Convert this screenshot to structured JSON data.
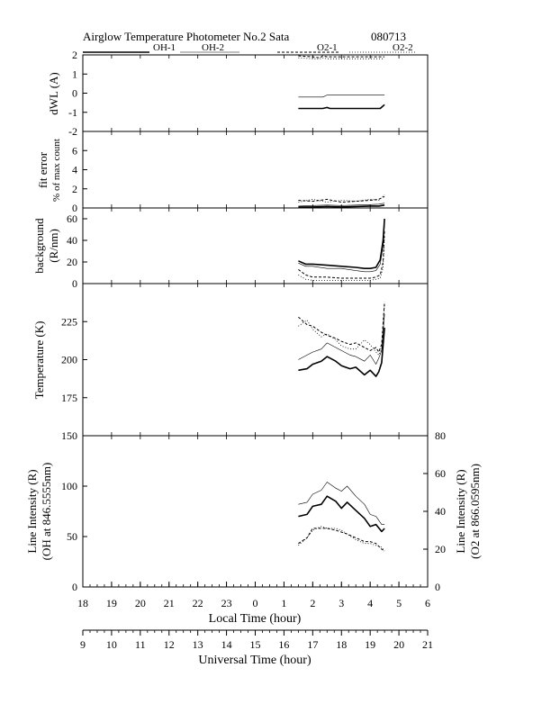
{
  "header": {
    "title": "Airglow Temperature Photometer No.2 Sata",
    "date_code": "080713"
  },
  "legend": [
    {
      "label": "OH-1",
      "color": "#000000",
      "dash": "solid"
    },
    {
      "label": "OH-2",
      "color": "#000000",
      "dash": "thin"
    },
    {
      "label": "O2-1",
      "color": "#000000",
      "dash": "dashed"
    },
    {
      "label": "O2-2",
      "color": "#000000",
      "dash": "dotted"
    }
  ],
  "x_axes": {
    "local": {
      "label": "Local Time (hour)",
      "ticks": [
        "18",
        "19",
        "20",
        "21",
        "22",
        "23",
        "0",
        "1",
        "2",
        "3",
        "4",
        "5",
        "6"
      ]
    },
    "universal": {
      "label": "Universal Time (hour)",
      "ticks": [
        "9",
        "10",
        "11",
        "12",
        "13",
        "14",
        "15",
        "16",
        "17",
        "18",
        "19",
        "20",
        "21"
      ]
    }
  },
  "chart_data": [
    {
      "type": "line",
      "id": "dwl",
      "ylabel": "dWL (A)",
      "ylim": [
        -2,
        2
      ],
      "yticks": [
        -2,
        -1,
        0,
        1,
        2
      ],
      "x": [
        1.5,
        2.0,
        2.25,
        2.35,
        2.5,
        2.6,
        3.0,
        3.5,
        4.0,
        4.35,
        4.5
      ],
      "series": [
        {
          "name": "OH-1",
          "values": [
            -0.8,
            -0.8,
            -0.8,
            -0.8,
            -0.75,
            -0.8,
            -0.8,
            -0.8,
            -0.8,
            -0.8,
            -0.6
          ]
        },
        {
          "name": "OH-2",
          "values": [
            -0.2,
            -0.2,
            -0.2,
            -0.2,
            -0.1,
            -0.1,
            -0.1,
            -0.1,
            -0.1,
            -0.1,
            -0.1
          ]
        },
        {
          "name": "O2-1",
          "values": [
            1.95,
            1.9,
            1.85,
            1.95,
            1.9,
            1.9,
            1.9,
            1.9,
            1.9,
            1.9,
            1.9
          ]
        },
        {
          "name": "O2-2",
          "values": [
            1.85,
            1.8,
            1.8,
            1.85,
            1.8,
            1.8,
            1.8,
            1.8,
            1.8,
            1.8,
            1.8
          ]
        }
      ]
    },
    {
      "type": "line",
      "id": "fiterror",
      "ylabel": [
        "fit error",
        "% of max count"
      ],
      "ylim": [
        0,
        8
      ],
      "yticks": [
        0,
        2,
        4,
        6
      ],
      "x": [
        1.5,
        2.0,
        2.5,
        3.0,
        3.5,
        4.0,
        4.3,
        4.5
      ],
      "series": [
        {
          "name": "OH-1",
          "values": [
            0.1,
            0.1,
            0.15,
            0.1,
            0.15,
            0.2,
            0.2,
            0.3
          ]
        },
        {
          "name": "OH-2",
          "values": [
            0.2,
            0.25,
            0.3,
            0.25,
            0.3,
            0.35,
            0.4,
            0.5
          ]
        },
        {
          "name": "O2-1",
          "values": [
            0.8,
            0.7,
            0.9,
            0.6,
            0.7,
            0.8,
            0.9,
            1.2
          ]
        },
        {
          "name": "O2-2",
          "values": [
            0.6,
            0.9,
            0.6,
            0.8,
            0.7,
            0.9,
            0.8,
            1.4
          ]
        }
      ]
    },
    {
      "type": "line",
      "id": "background",
      "ylabel": [
        "background",
        "(R/nm)"
      ],
      "ylim": [
        0,
        70
      ],
      "yticks": [
        0,
        20,
        40,
        60
      ],
      "x": [
        1.5,
        1.75,
        2.0,
        2.5,
        3.0,
        3.5,
        3.8,
        4.0,
        4.2,
        4.35,
        4.45,
        4.5
      ],
      "series": [
        {
          "name": "OH-1",
          "values": [
            21,
            18,
            18,
            17,
            16,
            15,
            14,
            14,
            15,
            22,
            40,
            60
          ]
        },
        {
          "name": "OH-2",
          "values": [
            19,
            16,
            16,
            14,
            14,
            12,
            11,
            11,
            12,
            18,
            35,
            55
          ]
        },
        {
          "name": "O2-1",
          "values": [
            13,
            8,
            6,
            6,
            5,
            5,
            5,
            5,
            6,
            8,
            20,
            50
          ]
        },
        {
          "name": "O2-2",
          "values": [
            8,
            4,
            3,
            3,
            3,
            3,
            3,
            3,
            4,
            5,
            15,
            45
          ]
        }
      ]
    },
    {
      "type": "line",
      "id": "temperature",
      "ylabel": "Temperature (K)",
      "ylim": [
        150,
        250
      ],
      "yticks": [
        175,
        200,
        225
      ],
      "x": [
        1.5,
        1.8,
        2.0,
        2.3,
        2.5,
        2.8,
        3.0,
        3.3,
        3.5,
        3.8,
        4.0,
        4.2,
        4.3,
        4.4,
        4.5
      ],
      "series": [
        {
          "name": "OH-1",
          "values": [
            193,
            194,
            197,
            199,
            202,
            199,
            196,
            194,
            195,
            190,
            193,
            189,
            192,
            198,
            221
          ]
        },
        {
          "name": "OH-2",
          "values": [
            200,
            203,
            205,
            207,
            211,
            208,
            206,
            203,
            202,
            199,
            203,
            197,
            201,
            206,
            230
          ]
        },
        {
          "name": "O2-1",
          "values": [
            228,
            223,
            222,
            218,
            216,
            214,
            212,
            210,
            211,
            208,
            206,
            208,
            205,
            210,
            238
          ]
        },
        {
          "name": "O2-2",
          "values": [
            222,
            226,
            220,
            215,
            217,
            213,
            209,
            207,
            207,
            213,
            210,
            205,
            203,
            207,
            236
          ]
        }
      ]
    },
    {
      "type": "line",
      "id": "intensity",
      "ylabel": [
        "Line Intensity (R)",
        "(OH at 846.5555nm)"
      ],
      "ylabel_right": [
        "Line Intensity (R)",
        "(O2 at 866.0595nm)"
      ],
      "ylim": [
        0,
        150
      ],
      "yticks": [
        0,
        50,
        100,
        150
      ],
      "ylim_right": [
        0,
        80
      ],
      "yticks_right": [
        0,
        20,
        40,
        60,
        80
      ],
      "x": [
        1.5,
        1.8,
        2.0,
        2.3,
        2.5,
        2.8,
        3.0,
        3.2,
        3.5,
        3.8,
        4.0,
        4.2,
        4.4,
        4.5
      ],
      "series": [
        {
          "name": "OH-1",
          "axis": "left",
          "values": [
            70,
            72,
            80,
            82,
            90,
            85,
            78,
            84,
            76,
            68,
            60,
            62,
            55,
            58
          ]
        },
        {
          "name": "OH-2",
          "axis": "left",
          "values": [
            82,
            84,
            92,
            96,
            104,
            98,
            95,
            100,
            90,
            82,
            72,
            70,
            62,
            62
          ]
        },
        {
          "name": "O2-1",
          "axis": "right",
          "values": [
            23,
            26,
            31,
            31,
            31,
            30,
            29,
            28,
            26,
            24,
            24,
            23,
            20,
            19
          ]
        },
        {
          "name": "O2-2",
          "axis": "right",
          "values": [
            22,
            26,
            30,
            32,
            31,
            31,
            30,
            28,
            25,
            23,
            23,
            22,
            21,
            19
          ]
        }
      ]
    }
  ]
}
